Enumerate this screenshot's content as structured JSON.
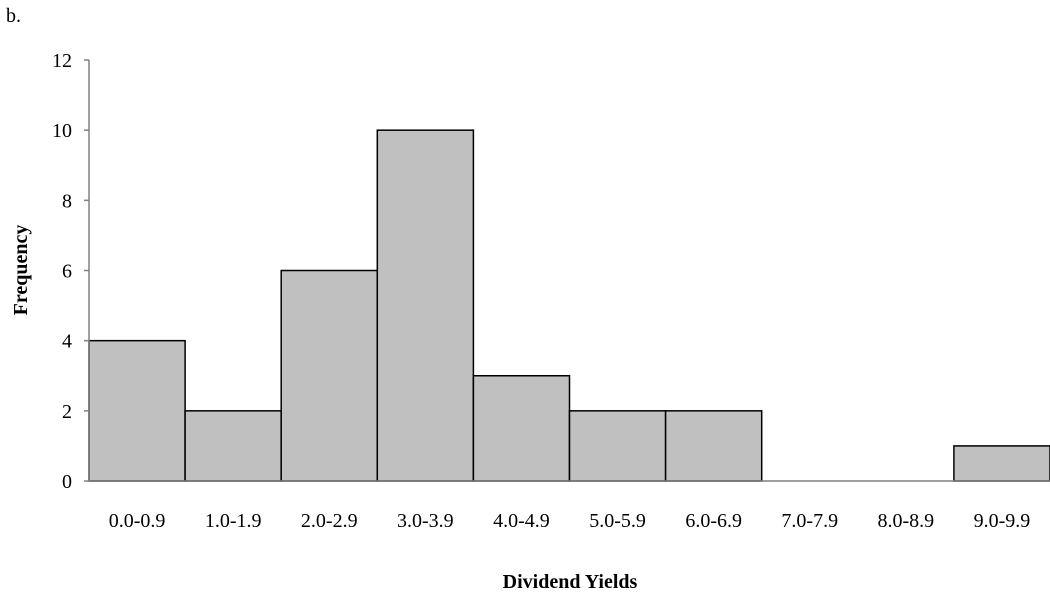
{
  "part_label": "b.",
  "chart_data": {
    "type": "bar",
    "title": "",
    "xlabel": "Dividend Yields",
    "ylabel": "Frequency",
    "categories": [
      "0.0-0.9",
      "1.0-1.9",
      "2.0-2.9",
      "3.0-3.9",
      "4.0-4.9",
      "5.0-5.9",
      "6.0-6.9",
      "7.0-7.9",
      "8.0-8.9",
      "9.0-9.9"
    ],
    "values": [
      4,
      2,
      6,
      10,
      3,
      2,
      2,
      0,
      0,
      1
    ],
    "ylim": [
      0,
      12
    ],
    "yticks": [
      0,
      2,
      4,
      6,
      8,
      10,
      12
    ],
    "grid": false,
    "legend": "none",
    "bar_fill": "#c0c0c0",
    "bar_stroke": "#000000",
    "axis_color": "#808080"
  }
}
